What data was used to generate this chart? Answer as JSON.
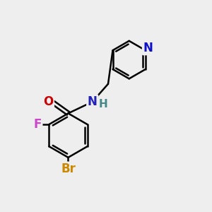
{
  "bg_color": "#eeeeee",
  "bond_color": "#000000",
  "bond_width": 1.8,
  "atoms": {
    "N_pyr": {
      "color": "#1010cc",
      "fontsize": 12
    },
    "N_amide": {
      "color": "#2222bb",
      "fontsize": 12
    },
    "O": {
      "color": "#cc0000",
      "fontsize": 12
    },
    "F": {
      "color": "#cc44cc",
      "fontsize": 12
    },
    "Br": {
      "color": "#cc8800",
      "fontsize": 12
    },
    "H": {
      "color": "#448888",
      "fontsize": 11
    }
  },
  "figsize": [
    3.0,
    3.0
  ],
  "dpi": 100,
  "xlim": [
    0,
    10
  ],
  "ylim": [
    0,
    10
  ]
}
